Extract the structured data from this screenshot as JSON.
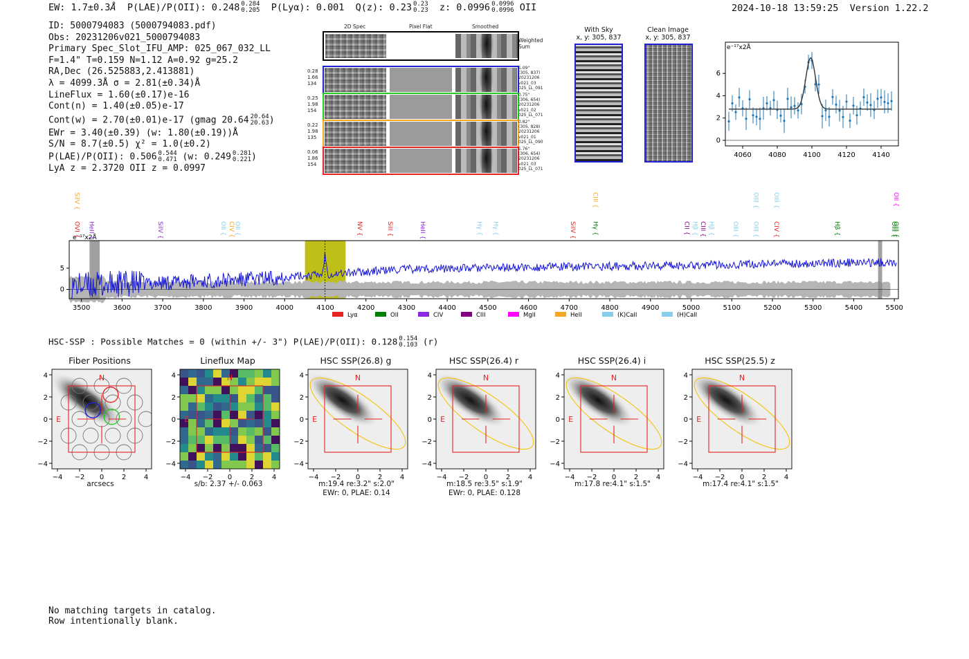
{
  "header": {
    "ew_label": "EW: 1.7±0.3",
    "ew_unit": "Å",
    "plae_label": "P(LAE)/P(OII): 0.248",
    "plae_hi": "0.284",
    "plae_lo": "0.205",
    "plya_label": "P(Lyα): 0.001",
    "qz_label": "Q(z): 0.23",
    "qz_hi": "0.23",
    "qz_lo": "0.23",
    "z_label": "z: 0.0996",
    "z_hi": "0.0996",
    "z_lo": "0.0996",
    "z_line": "OII",
    "timestamp": "2024-10-18 13:59:25",
    "version": "Version 1.22.2"
  },
  "info": {
    "id": "ID: 5000794083 (5000794083.pdf)",
    "obs": "Obs: 20231206v021_5000794083",
    "primary": "Primary Spec_Slot_IFU_AMP: 025_067_032_LL",
    "params": "F=1.4\"  T=0.159  N=1.12  A=0.92  g=25.2",
    "radec": "RA,Dec (26.525883,2.413881)",
    "lambda": "λ = 4099.3Å   σ = 2.81(±0.34)Å",
    "lineflux": "LineFlux = 1.60(±0.17)e-16",
    "contn": "Cont(n) = 1.40(±0.05)e-17",
    "contw": "Cont(w) = 2.70(±0.01)e-17 (gmag 20.64",
    "contw_hi": "20.64",
    "contw_lo": "20.63",
    "contw_end": ")",
    "ewr": "EWr = 3.40(±0.39) (w: 1.80(±0.19))Å",
    "sn": "S/N = 8.7(±0.5)  χ² = 1.0(±0.2)",
    "plae": "P(LAE)/P(OII): 0.506",
    "plae_hi": "0.544",
    "plae_lo": "0.471",
    "plae_w": "(w: 0.249",
    "plae_w_hi": "0.281",
    "plae_w_lo": "0.221",
    "plae_end": ")",
    "lyaz": "LyA z = 2.3720   OII z = 0.0997"
  },
  "cutouts": {
    "col_headers": [
      "2D Spec",
      "Pixel Flat",
      "Smoothed"
    ],
    "weighted_label": "Weighted Sum",
    "rows": [
      {
        "left": [
          "0.28",
          "1.66",
          "134"
        ],
        "right": [
          "1.09\"",
          "(305, 837)",
          "20231206",
          "v021_03",
          "025_LL_091"
        ],
        "color": "#1f1fd8"
      },
      {
        "left": [
          "0.25",
          "1.98",
          "154"
        ],
        "right": [
          "0.75\"",
          "(306, 654)",
          "20231206",
          "v021_02",
          "025_LL_071"
        ],
        "color": "#22cc22"
      },
      {
        "left": [
          "0.22",
          "1.98",
          "135"
        ],
        "right": [
          "0.82\"",
          "(305, 828)",
          "20231206",
          "v021_01",
          "025_LL_090"
        ],
        "color": "#f5a623"
      },
      {
        "left": [
          "0.06",
          "1.86",
          "154"
        ],
        "right": [
          "1.76\"",
          "(306, 654)",
          "20231206",
          "v021_03",
          "025_LL_071"
        ],
        "color": "#e52222"
      }
    ]
  },
  "sky": {
    "with_sky_title": "With Sky",
    "with_sky_coords": "x, y: 305, 837",
    "clean_title": "Clean Image",
    "clean_coords": "x, y: 305, 837"
  },
  "zoom_plot": {
    "unit_label": "e⁻¹⁷x2Å",
    "x_ticks": [
      "4060",
      "4080",
      "4100",
      "4120",
      "4140"
    ],
    "y_ticks": [
      "0",
      "2",
      "4",
      "6"
    ]
  },
  "spectrum": {
    "unit_label": "e⁻¹⁷x2Å",
    "x_ticks": [
      "3500",
      "3600",
      "3700",
      "3800",
      "3900",
      "4000",
      "4100",
      "4200",
      "4300",
      "4400",
      "4500",
      "4600",
      "4700",
      "4800",
      "4900",
      "5000",
      "5100",
      "5200",
      "5300",
      "5400",
      "5500"
    ],
    "y_ticks": [
      "0",
      "5"
    ],
    "line_labels": [
      {
        "text": "SiIV",
        "color": "#f5a623",
        "wl": 3490,
        "row": 0
      },
      {
        "text": "OVI",
        "color": "#e52222",
        "wl": 3490,
        "row": 1
      },
      {
        "text": "HeII",
        "color": "#8a2be2",
        "wl": 3525,
        "row": 1
      },
      {
        "text": "SiIV",
        "color": "#8a2be2",
        "wl": 3695,
        "row": 1
      },
      {
        "text": "OII",
        "color": "#87ceeb",
        "wl": 3850,
        "row": 1
      },
      {
        "text": "CIV",
        "color": "#f5a623",
        "wl": 3870,
        "row": 1
      },
      {
        "text": "OII",
        "color": "#87ceeb",
        "wl": 3885,
        "row": 1
      },
      {
        "text": "NV",
        "color": "#e52222",
        "wl": 4185,
        "row": 1
      },
      {
        "text": "SiII",
        "color": "#e52222",
        "wl": 4260,
        "row": 1
      },
      {
        "text": "HeII",
        "color": "#8a2be2",
        "wl": 4340,
        "row": 1
      },
      {
        "text": "Hγ",
        "color": "#87ceeb",
        "wl": 4480,
        "row": 1
      },
      {
        "text": "Hγ",
        "color": "#87ceeb",
        "wl": 4520,
        "row": 1
      },
      {
        "text": "SiIV",
        "color": "#e52222",
        "wl": 4710,
        "row": 1
      },
      {
        "text": "CIII",
        "color": "#f5a623",
        "wl": 4765,
        "row": 0
      },
      {
        "text": "Hγ",
        "color": "#008000",
        "wl": 4765,
        "row": 1
      },
      {
        "text": "CII",
        "color": "#800080",
        "wl": 4990,
        "row": 1
      },
      {
        "text": "Hβ",
        "color": "#87ceeb",
        "wl": 5010,
        "row": 1
      },
      {
        "text": "CIII",
        "color": "#800080",
        "wl": 5030,
        "row": 1
      },
      {
        "text": "Hβ",
        "color": "#87ceeb",
        "wl": 5050,
        "row": 1
      },
      {
        "text": "OIII",
        "color": "#87ceeb",
        "wl": 5110,
        "row": 1
      },
      {
        "text": "OIII",
        "color": "#87ceeb",
        "wl": 5160,
        "row": 0
      },
      {
        "text": "OIII",
        "color": "#87ceeb",
        "wl": 5160,
        "row": 1
      },
      {
        "text": "OIII",
        "color": "#87ceeb",
        "wl": 5210,
        "row": 0
      },
      {
        "text": "CIV",
        "color": "#e52222",
        "wl": 5210,
        "row": 1
      },
      {
        "text": "Hβ",
        "color": "#008000",
        "wl": 5360,
        "row": 1
      },
      {
        "text": "OII",
        "color": "#ff00ff",
        "wl": 5505,
        "row": 0
      },
      {
        "text": "OIII",
        "color": "#008000",
        "wl": 5500,
        "row": 1
      },
      {
        "text": "OIII",
        "color": "#008000",
        "wl": 5550,
        "row": 1
      }
    ],
    "legend": [
      {
        "label": "Lyα",
        "color": "#e52222"
      },
      {
        "label": "OII",
        "color": "#008000"
      },
      {
        "label": "CIV",
        "color": "#8a2be2"
      },
      {
        "label": "CIII",
        "color": "#800080"
      },
      {
        "label": "MgII",
        "color": "#ff00ff"
      },
      {
        "label": "HeII",
        "color": "#f5a623"
      },
      {
        "label": "(K)CaII",
        "color": "#87ceeb"
      },
      {
        "label": "(H)CaII",
        "color": "#87ceeb"
      }
    ]
  },
  "hsc": {
    "summary": "HSC-SSP : Possible Matches = 0 (within +/- 3\")  P(LAE)/P(OII): 0.128",
    "summary_hi": "0.154",
    "summary_lo": "0.103",
    "summary_band": "(r)",
    "panels": [
      {
        "title": "Fiber Positions",
        "footer1": "arcsecs",
        "footer2": ""
      },
      {
        "title": "Lineflux Map",
        "footer1": "s/b: 2.37 +/- 0.063",
        "footer2": ""
      },
      {
        "title": "HSC SSP(26.8) g",
        "footer1": "m:19.4  re:3.2\"  s:2.0\"",
        "footer2": "EWr: 0, PLAE: 0.14"
      },
      {
        "title": "HSC SSP(26.4) r",
        "footer1": "m:18.5  re:3.5\"  s:1.9\"",
        "footer2": "EWr: 0, PLAE: 0.128"
      },
      {
        "title": "HSC SSP(26.4) i",
        "footer1": "m:17.8  re:4.1\"  s:1.5\"",
        "footer2": ""
      },
      {
        "title": "HSC SSP(25.5) z",
        "footer1": "m:17.4  re:4.1\"  s:1.5\"",
        "footer2": ""
      }
    ],
    "north_label": "N",
    "east_label": "E",
    "x_ticks": [
      "−4",
      "−2",
      "0",
      "2",
      "4"
    ],
    "y_ticks": [
      "4",
      "2",
      "0",
      "−2",
      "−4"
    ]
  },
  "footer": {
    "line1": "No matching targets in catalog.",
    "line2": "Row intentionally blank."
  }
}
